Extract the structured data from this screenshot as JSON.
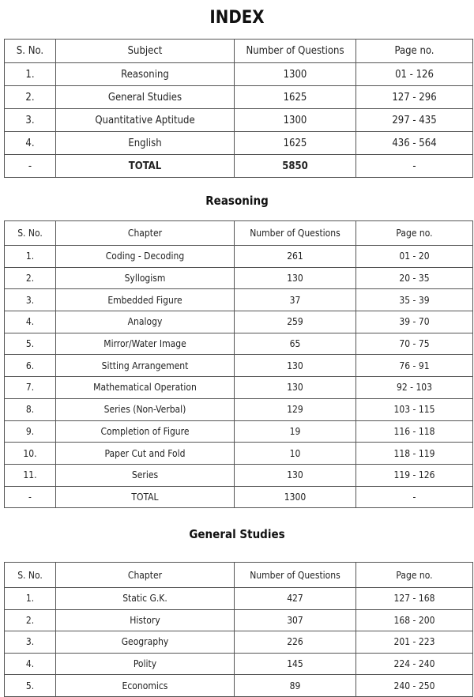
{
  "index": {
    "title": "INDEX",
    "headers": [
      "S. No.",
      "Subject",
      "Number of Questions",
      "Page no."
    ],
    "rows": [
      [
        "1.",
        "Reasoning",
        "1300",
        "01 - 126"
      ],
      [
        "2.",
        "General Studies",
        "1625",
        "127 - 296"
      ],
      [
        "3.",
        "Quantitative Aptitude",
        "1300",
        "297 - 435"
      ],
      [
        "4.",
        "English",
        "1625",
        "436 - 564"
      ],
      [
        "-",
        "TOTAL",
        "5850",
        "-"
      ]
    ]
  },
  "reasoning": {
    "title": "Reasoning",
    "headers": [
      "S. No.",
      "Chapter",
      "Number of Questions",
      "Page no."
    ],
    "rows": [
      [
        "1.",
        "Coding - Decoding",
        "261",
        "01 - 20"
      ],
      [
        "2.",
        "Syllogism",
        "130",
        "20 - 35"
      ],
      [
        "3.",
        "Embedded Figure",
        "37",
        "35 - 39"
      ],
      [
        "4.",
        "Analogy",
        "259",
        "39 - 70"
      ],
      [
        "5.",
        "Mirror/Water Image",
        "65",
        "70 - 75"
      ],
      [
        "6.",
        "Sitting Arrangement",
        "130",
        "76 - 91"
      ],
      [
        "7.",
        "Mathematical Operation",
        "130",
        "92 - 103"
      ],
      [
        "8.",
        "Series (Non-Verbal)",
        "129",
        "103 - 115"
      ],
      [
        "9.",
        "Completion of Figure",
        "19",
        "116 - 118"
      ],
      [
        "10.",
        "Paper Cut and Fold",
        "10",
        "118 - 119"
      ],
      [
        "11.",
        "Series",
        "130",
        "119 - 126"
      ],
      [
        "-",
        "TOTAL",
        "1300",
        "-"
      ]
    ]
  },
  "general_studies": {
    "title": "General Studies",
    "headers": [
      "S. No.",
      "Chapter",
      "Number of Questions",
      "Page no."
    ],
    "rows": [
      [
        "1.",
        "Static G.K.",
        "427",
        "127 - 168"
      ],
      [
        "2.",
        "History",
        "307",
        "168 - 200"
      ],
      [
        "3.",
        "Geography",
        "226",
        "201 - 223"
      ],
      [
        "4.",
        "Polity",
        "145",
        "224 - 240"
      ],
      [
        "5.",
        "Economics",
        "89",
        "240 - 250"
      ]
    ]
  }
}
